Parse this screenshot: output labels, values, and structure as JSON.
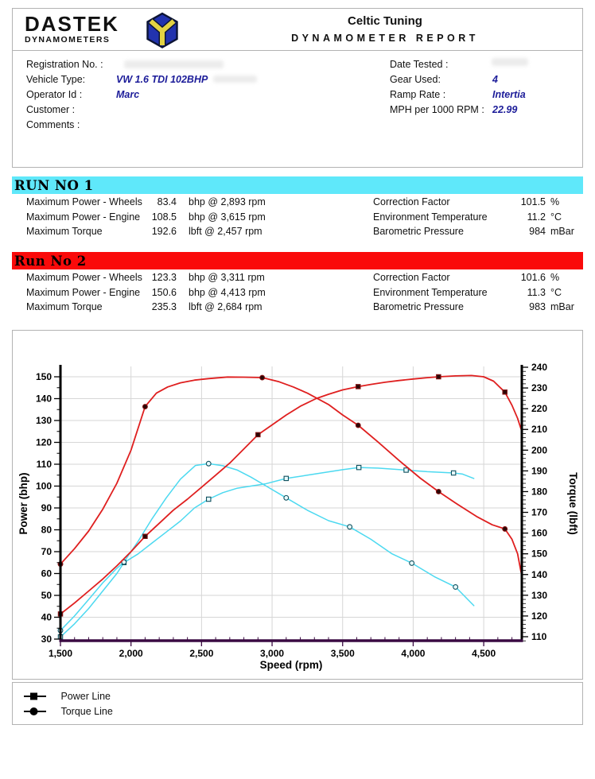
{
  "header": {
    "logo": {
      "line1": "DASTEK",
      "line2": "DYNAMOMETERS",
      "icon": "cube-logo"
    },
    "company": "Celtic Tuning",
    "report_title": "DYNAMOMETER REPORT"
  },
  "info": {
    "left": [
      {
        "label": "Registration No. :",
        "value": ""
      },
      {
        "label": "Vehicle Type:",
        "value": "VW 1.6 TDI 102BHP"
      },
      {
        "label": "Operator Id :",
        "value": "Marc"
      },
      {
        "label": "Customer :",
        "value": ""
      },
      {
        "label": "Comments :",
        "value": ""
      }
    ],
    "right": [
      {
        "label": "Date Tested :",
        "value": ""
      },
      {
        "label": "Gear Used:",
        "value": "4"
      },
      {
        "label": "Ramp Rate :",
        "value": "Intertia"
      },
      {
        "label": "MPH per 1000 RPM :",
        "value": "22.99"
      }
    ]
  },
  "runs": [
    {
      "title": "RUN NO 1",
      "color": "#5fe8fa",
      "rows": [
        {
          "label": "Maximum Power - Wheels",
          "value": "83.4",
          "unit": "bhp @ 2,893 rpm",
          "label2": "Correction Factor",
          "value2": "101.5",
          "unit2": "%"
        },
        {
          "label": "Maximum Power - Engine",
          "value": "108.5",
          "unit": "bhp @ 3,615 rpm",
          "label2": "Environment Temperature",
          "value2": "11.2",
          "unit2": "°C"
        },
        {
          "label": "Maximum Torque",
          "value": "192.6",
          "unit": "lbft @ 2,457 rpm",
          "label2": "Barometric Pressure",
          "value2": "984",
          "unit2": "mBar"
        }
      ]
    },
    {
      "title": "Run No 2",
      "color": "#fa0a0a",
      "rows": [
        {
          "label": "Maximum Power - Wheels",
          "value": "123.3",
          "unit": "bhp @ 3,311 rpm",
          "label2": "Correction Factor",
          "value2": "101.6",
          "unit2": "%"
        },
        {
          "label": "Maximum Power - Engine",
          "value": "150.6",
          "unit": "bhp @ 4,413 rpm",
          "label2": "Environment Temperature",
          "value2": "11.3",
          "unit2": "°C"
        },
        {
          "label": "Maximum Torque",
          "value": "235.3",
          "unit": "lbft @ 2,684 rpm",
          "label2": "Barometric Pressure",
          "value2": "983",
          "unit2": "mBar"
        }
      ]
    }
  ],
  "chart_data": {
    "type": "line",
    "xlabel": "Speed (rpm)",
    "ylabel_left": "Power (bhp)",
    "ylabel_right": "Torque (lbft)",
    "x_range": [
      1500,
      4770
    ],
    "x_ticks": [
      1500,
      2000,
      2500,
      3000,
      3500,
      4000,
      4500
    ],
    "x_tick_labels": [
      "1,500",
      "2,000",
      "2,500",
      "3,000",
      "3,500",
      "4,000",
      "4,500"
    ],
    "y_left_ticks": [
      30,
      40,
      50,
      60,
      70,
      80,
      90,
      100,
      110,
      120,
      130,
      140,
      150
    ],
    "y_right_ticks": [
      110,
      120,
      130,
      140,
      150,
      160,
      170,
      180,
      190,
      200,
      210,
      220,
      230,
      240
    ],
    "grid": true,
    "x_axis_color": "#3a0a42",
    "series": [
      {
        "name": "Run 1 Power",
        "axis": "left",
        "unit": "bhp",
        "color": "#4cd9f0",
        "marker": "square",
        "marker_fill": "#e8fbff",
        "marker_stroke": "#0d4f5c",
        "points": [
          [
            1500,
            31
          ],
          [
            1600,
            37
          ],
          [
            1700,
            44
          ],
          [
            1800,
            52
          ],
          [
            1900,
            60
          ],
          [
            1950,
            65
          ],
          [
            2050,
            69
          ],
          [
            2150,
            74
          ],
          [
            2250,
            79
          ],
          [
            2350,
            84
          ],
          [
            2450,
            90
          ],
          [
            2550,
            94
          ],
          [
            2650,
            97
          ],
          [
            2750,
            99
          ],
          [
            2850,
            100
          ],
          [
            2950,
            101
          ],
          [
            3100,
            103.5
          ],
          [
            3250,
            105
          ],
          [
            3400,
            106.5
          ],
          [
            3500,
            107.5
          ],
          [
            3615,
            108.5
          ],
          [
            3750,
            108.2
          ],
          [
            3950,
            107.3
          ],
          [
            4100,
            106.6
          ],
          [
            4286,
            106
          ],
          [
            4350,
            105.5
          ],
          [
            4430,
            103.5
          ]
        ],
        "marker_rpms": [
          1500,
          1950,
          2550,
          3100,
          3615,
          3950,
          4286
        ]
      },
      {
        "name": "Run 1 Torque",
        "axis": "right",
        "unit": "lbft",
        "color": "#4cd9f0",
        "marker": "circle",
        "marker_fill": "#e8fbff",
        "marker_stroke": "#0d4f5c",
        "points": [
          [
            1500,
            113
          ],
          [
            1600,
            120
          ],
          [
            1700,
            128
          ],
          [
            1800,
            136
          ],
          [
            1900,
            143
          ],
          [
            1950,
            146
          ],
          [
            2050,
            156
          ],
          [
            2150,
            167
          ],
          [
            2250,
            177
          ],
          [
            2350,
            186
          ],
          [
            2457,
            192.6
          ],
          [
            2550,
            193.5
          ],
          [
            2650,
            192.5
          ],
          [
            2750,
            190.5
          ],
          [
            2850,
            187
          ],
          [
            2950,
            183
          ],
          [
            3100,
            177
          ],
          [
            3250,
            171
          ],
          [
            3400,
            166
          ],
          [
            3550,
            163
          ],
          [
            3700,
            157
          ],
          [
            3850,
            150
          ],
          [
            3990,
            145.5
          ],
          [
            4150,
            139
          ],
          [
            4300,
            134
          ],
          [
            4430,
            125
          ]
        ],
        "marker_rpms": [
          1500,
          1950,
          2550,
          3100,
          3550,
          3990,
          4300
        ]
      },
      {
        "name": "Run 2 Power",
        "axis": "left",
        "unit": "bhp",
        "color": "#df1f1f",
        "marker": "square",
        "marker_fill": "#2a0707",
        "marker_stroke": "#801212",
        "points": [
          [
            1500,
            41.5
          ],
          [
            1600,
            46.5
          ],
          [
            1700,
            52
          ],
          [
            1800,
            57.5
          ],
          [
            1900,
            63.5
          ],
          [
            2000,
            70
          ],
          [
            2100,
            77
          ],
          [
            2200,
            83
          ],
          [
            2300,
            89
          ],
          [
            2400,
            94
          ],
          [
            2500,
            99.5
          ],
          [
            2600,
            105
          ],
          [
            2700,
            110.5
          ],
          [
            2800,
            117
          ],
          [
            2900,
            123.5
          ],
          [
            3000,
            128
          ],
          [
            3100,
            132.5
          ],
          [
            3200,
            136.5
          ],
          [
            3311,
            140
          ],
          [
            3400,
            142
          ],
          [
            3500,
            144
          ],
          [
            3610,
            145.5
          ],
          [
            3700,
            146.5
          ],
          [
            3800,
            147.5
          ],
          [
            3900,
            148.3
          ],
          [
            4000,
            149
          ],
          [
            4100,
            149.6
          ],
          [
            4180,
            150
          ],
          [
            4300,
            150.4
          ],
          [
            4413,
            150.6
          ],
          [
            4500,
            150
          ],
          [
            4570,
            148
          ],
          [
            4650,
            143
          ],
          [
            4700,
            137
          ],
          [
            4740,
            131
          ],
          [
            4765,
            126
          ]
        ],
        "marker_rpms": [
          1500,
          2100,
          2900,
          3610,
          4180,
          4650
        ]
      },
      {
        "name": "Run 2 Torque",
        "axis": "right",
        "unit": "lbft",
        "color": "#df1f1f",
        "marker": "circle",
        "marker_fill": "#2a0707",
        "marker_stroke": "#801212",
        "points": [
          [
            1500,
            145
          ],
          [
            1600,
            152.5
          ],
          [
            1700,
            161
          ],
          [
            1800,
            171.5
          ],
          [
            1900,
            184
          ],
          [
            2000,
            200
          ],
          [
            2100,
            221
          ],
          [
            2180,
            227.5
          ],
          [
            2260,
            230.5
          ],
          [
            2350,
            232.5
          ],
          [
            2450,
            233.8
          ],
          [
            2550,
            234.5
          ],
          [
            2684,
            235.3
          ],
          [
            2800,
            235.2
          ],
          [
            2930,
            235
          ],
          [
            3050,
            233
          ],
          [
            3150,
            230.5
          ],
          [
            3250,
            227.5
          ],
          [
            3400,
            222
          ],
          [
            3500,
            217
          ],
          [
            3610,
            212
          ],
          [
            3750,
            204
          ],
          [
            3900,
            195
          ],
          [
            4050,
            186.5
          ],
          [
            4180,
            180
          ],
          [
            4300,
            174.5
          ],
          [
            4450,
            168
          ],
          [
            4560,
            164
          ],
          [
            4650,
            162
          ],
          [
            4700,
            157
          ],
          [
            4740,
            150
          ],
          [
            4765,
            141
          ]
        ],
        "marker_rpms": [
          1500,
          2100,
          2930,
          3610,
          4180,
          4650
        ]
      }
    ]
  },
  "legend": {
    "items": [
      {
        "marker": "square",
        "label": "Power Line"
      },
      {
        "marker": "circle",
        "label": "Torque Line"
      }
    ]
  }
}
